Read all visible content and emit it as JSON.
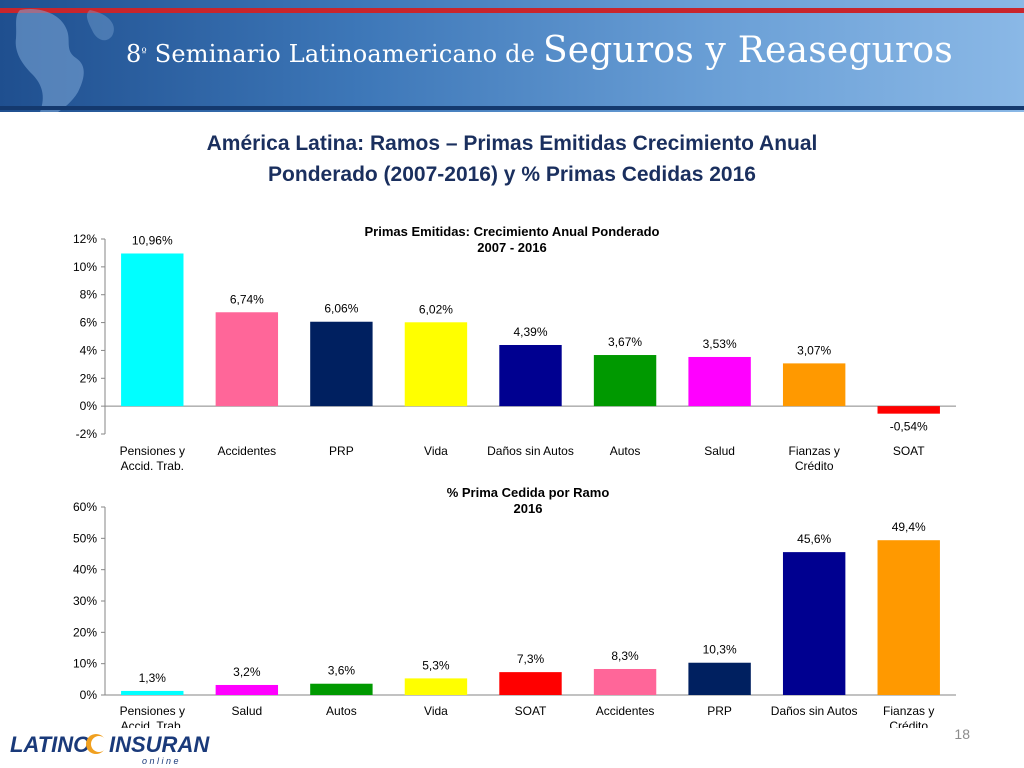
{
  "banner": {
    "title_prefix": "8",
    "title_superscript": "º",
    "title_small": " Seminario Latinoamericano de ",
    "title_big": "Seguros y Reaseguros"
  },
  "main_title": {
    "line1": "América Latina: Ramos – Primas Emitidas Crecimiento Anual",
    "line2": "Ponderado (2007-2016) y % Primas Cedidas 2016"
  },
  "chart_data": [
    {
      "type": "bar",
      "title": [
        "Primas Emitidas: Crecimiento Anual Ponderado",
        "2007 - 2016"
      ],
      "categories": [
        [
          "Pensiones y",
          "Accid. Trab."
        ],
        [
          "Accidentes"
        ],
        [
          "PRP"
        ],
        [
          "Vida"
        ],
        [
          "Daños sin Autos"
        ],
        [
          "Autos"
        ],
        [
          "Salud"
        ],
        [
          "Fianzas y",
          "Crédito"
        ],
        [
          "SOAT"
        ]
      ],
      "values": [
        10.96,
        6.74,
        6.06,
        6.02,
        4.39,
        3.67,
        3.53,
        3.07,
        -0.54
      ],
      "labels": [
        "10,96%",
        "6,74%",
        "6,06%",
        "6,02%",
        "4,39%",
        "3,67%",
        "3,53%",
        "3,07%",
        "-0,54%"
      ],
      "colors": [
        "#00ffff",
        "#ff6699",
        "#002060",
        "#ffff00",
        "#000090",
        "#009900",
        "#ff00ff",
        "#ff9900",
        "#ff0000"
      ],
      "ylim": [
        -2,
        12
      ],
      "yticks": [
        -2,
        0,
        2,
        4,
        6,
        8,
        10,
        12
      ],
      "ytick_labels": [
        "-2%",
        "0%",
        "2%",
        "4%",
        "6%",
        "8%",
        "10%",
        "12%"
      ],
      "grid": false
    },
    {
      "type": "bar",
      "title": [
        "% Prima Cedida por Ramo",
        "2016"
      ],
      "categories": [
        [
          "Pensiones y",
          "Accid. Trab."
        ],
        [
          "Salud"
        ],
        [
          "Autos"
        ],
        [
          "Vida"
        ],
        [
          "SOAT"
        ],
        [
          "Accidentes"
        ],
        [
          "PRP"
        ],
        [
          "Daños sin Autos"
        ],
        [
          "Fianzas y",
          "Crédito"
        ]
      ],
      "values": [
        1.3,
        3.2,
        3.6,
        5.3,
        7.3,
        8.3,
        10.3,
        45.6,
        49.4
      ],
      "labels": [
        "1,3%",
        "3,2%",
        "3,6%",
        "5,3%",
        "7,3%",
        "8,3%",
        "10,3%",
        "45,6%",
        "49,4%"
      ],
      "colors": [
        "#00ffff",
        "#ff00ff",
        "#009900",
        "#ffff00",
        "#ff0000",
        "#ff6699",
        "#002060",
        "#000090",
        "#ff9900"
      ],
      "ylim": [
        0,
        60
      ],
      "yticks": [
        0,
        10,
        20,
        30,
        40,
        50,
        60
      ],
      "ytick_labels": [
        "0%",
        "10%",
        "20%",
        "30%",
        "40%",
        "50%",
        "60%"
      ],
      "grid": false
    }
  ],
  "logo": {
    "text_left": "LATINO",
    "text_right": "INSURANCE",
    "subtitle": "o n   l i n e"
  },
  "slide_number": "18"
}
